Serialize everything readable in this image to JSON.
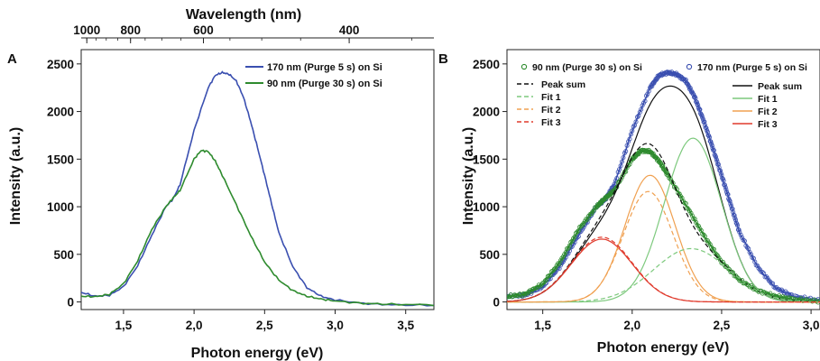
{
  "chart_data": [
    {
      "type": "line",
      "panel_label": "A",
      "xlabel": "Photon energy (eV)",
      "ylabel": "Intensity (a.u.)",
      "top_axis_label": "Wavelength (nm)",
      "xlim": [
        1.2,
        3.7
      ],
      "ylim": [
        -80,
        2650
      ],
      "x_ticks": [
        1.5,
        2.0,
        2.5,
        3.0,
        3.5
      ],
      "x_tick_labels": [
        "1,5",
        "2,0",
        "2,5",
        "3,0",
        "3,5"
      ],
      "y_ticks": [
        0,
        500,
        1000,
        1500,
        2000,
        2500
      ],
      "y_tick_labels": [
        "0",
        "500",
        "1000",
        "1500",
        "2000",
        "2500"
      ],
      "top_ticks_nm": [
        1000,
        800,
        600,
        400
      ],
      "top_tick_labels": [
        "1000",
        "800",
        "600",
        "400"
      ],
      "legend_position": "top-right",
      "series": [
        {
          "name": "170 nm (Purge 5 s) on Si",
          "color": "#3a4fb0",
          "x": [
            1.2,
            1.3,
            1.4,
            1.5,
            1.6,
            1.7,
            1.8,
            1.85,
            1.9,
            2.0,
            2.1,
            2.15,
            2.2,
            2.25,
            2.3,
            2.35,
            2.4,
            2.45,
            2.5,
            2.55,
            2.6,
            2.7,
            2.8,
            2.9,
            3.0,
            3.2,
            3.4,
            3.7
          ],
          "y": [
            100,
            60,
            70,
            160,
            380,
            700,
            1000,
            1080,
            1230,
            1800,
            2250,
            2380,
            2410,
            2390,
            2320,
            2150,
            1900,
            1620,
            1330,
            1030,
            730,
            370,
            150,
            60,
            20,
            -15,
            -30,
            -35
          ]
        },
        {
          "name": "90 nm (Purge 30 s) on Si",
          "color": "#2e8b2e",
          "x": [
            1.2,
            1.3,
            1.4,
            1.5,
            1.6,
            1.7,
            1.8,
            1.85,
            1.9,
            2.0,
            2.05,
            2.1,
            2.15,
            2.2,
            2.3,
            2.4,
            2.5,
            2.6,
            2.7,
            2.8,
            2.9,
            3.0,
            3.2,
            3.4,
            3.7
          ],
          "y": [
            60,
            55,
            80,
            190,
            430,
            760,
            1000,
            1090,
            1170,
            1500,
            1590,
            1580,
            1480,
            1330,
            1020,
            700,
            420,
            230,
            120,
            60,
            30,
            10,
            -15,
            -25,
            -30
          ]
        }
      ]
    },
    {
      "type": "line",
      "panel_label": "B",
      "xlabel": "Photon energy (eV)",
      "ylabel": "Intensity (a.u.)",
      "xlim": [
        1.3,
        3.05
      ],
      "ylim": [
        -80,
        2650
      ],
      "x_ticks": [
        1.5,
        2.0,
        2.5,
        3.0
      ],
      "x_tick_labels": [
        "1,5",
        "2,0",
        "2,5",
        "3,0"
      ],
      "y_ticks": [
        0,
        500,
        1000,
        1500,
        2000,
        2500
      ],
      "y_tick_labels": [
        "0",
        "500",
        "1000",
        "1500",
        "2000",
        "2500"
      ],
      "legend_left": {
        "data_label": "90 nm (Purge 30 s) on Si",
        "entries": [
          "Peak sum",
          "Fit 1",
          "Fit 2",
          "Fit 3"
        ]
      },
      "legend_right": {
        "data_label": "170 nm (Purge 5 s) on Si",
        "entries": [
          "Peak sum",
          "Fit 1",
          "Fit 2",
          "Fit 3"
        ]
      },
      "series": [
        {
          "name": "170 nm data",
          "role": "data",
          "color": "#3a4fb0",
          "dash": false,
          "x": [
            1.3,
            1.4,
            1.5,
            1.6,
            1.7,
            1.8,
            1.85,
            1.9,
            2.0,
            2.1,
            2.15,
            2.2,
            2.25,
            2.3,
            2.35,
            2.4,
            2.45,
            2.5,
            2.55,
            2.6,
            2.7,
            2.8,
            2.9,
            3.05
          ],
          "y": [
            60,
            70,
            160,
            380,
            700,
            1000,
            1080,
            1230,
            1800,
            2250,
            2380,
            2410,
            2390,
            2320,
            2150,
            1900,
            1620,
            1330,
            1030,
            730,
            370,
            150,
            60,
            15
          ]
        },
        {
          "name": "90 nm data",
          "role": "data",
          "color": "#2e8b2e",
          "dash": false,
          "x": [
            1.3,
            1.4,
            1.5,
            1.6,
            1.7,
            1.8,
            1.85,
            1.9,
            2.0,
            2.05,
            2.1,
            2.15,
            2.2,
            2.3,
            2.4,
            2.5,
            2.6,
            2.7,
            2.8,
            2.9,
            3.05
          ],
          "y": [
            55,
            80,
            190,
            430,
            760,
            1000,
            1090,
            1170,
            1500,
            1590,
            1580,
            1480,
            1330,
            1020,
            700,
            420,
            230,
            120,
            60,
            30,
            5
          ]
        },
        {
          "name": "Peak sum (170 nm)",
          "role": "fit",
          "color": "#111111",
          "dash": false,
          "gauss": [
            [
              660,
              1.83,
              0.17
            ],
            [
              1330,
              2.1,
              0.14
            ],
            [
              1720,
              2.34,
              0.16
            ]
          ]
        },
        {
          "name": "Fit 1 (170 nm)",
          "role": "fit",
          "color": "#7dc97d",
          "dash": false,
          "gauss": [
            [
              1720,
              2.34,
              0.16
            ]
          ]
        },
        {
          "name": "Fit 2 (170 nm)",
          "role": "fit",
          "color": "#f0a050",
          "dash": false,
          "gauss": [
            [
              1330,
              2.1,
              0.14
            ]
          ]
        },
        {
          "name": "Fit 3 (170 nm)",
          "role": "fit",
          "color": "#e03a2c",
          "dash": false,
          "gauss": [
            [
              660,
              1.83,
              0.17
            ]
          ]
        },
        {
          "name": "Peak sum (90 nm)",
          "role": "fit",
          "color": "#111111",
          "dash": true,
          "gauss": [
            [
              680,
              1.83,
              0.17
            ],
            [
              1160,
              2.09,
              0.14
            ],
            [
              560,
              2.33,
              0.21
            ]
          ]
        },
        {
          "name": "Fit 1 (90 nm)",
          "role": "fit",
          "color": "#7dc97d",
          "dash": true,
          "gauss": [
            [
              560,
              2.33,
              0.21
            ]
          ]
        },
        {
          "name": "Fit 2 (90 nm)",
          "role": "fit",
          "color": "#f0a050",
          "dash": true,
          "gauss": [
            [
              1160,
              2.09,
              0.14
            ]
          ]
        },
        {
          "name": "Fit 3 (90 nm)",
          "role": "fit",
          "color": "#e03a2c",
          "dash": true,
          "gauss": [
            [
              680,
              1.83,
              0.17
            ]
          ]
        }
      ]
    }
  ]
}
